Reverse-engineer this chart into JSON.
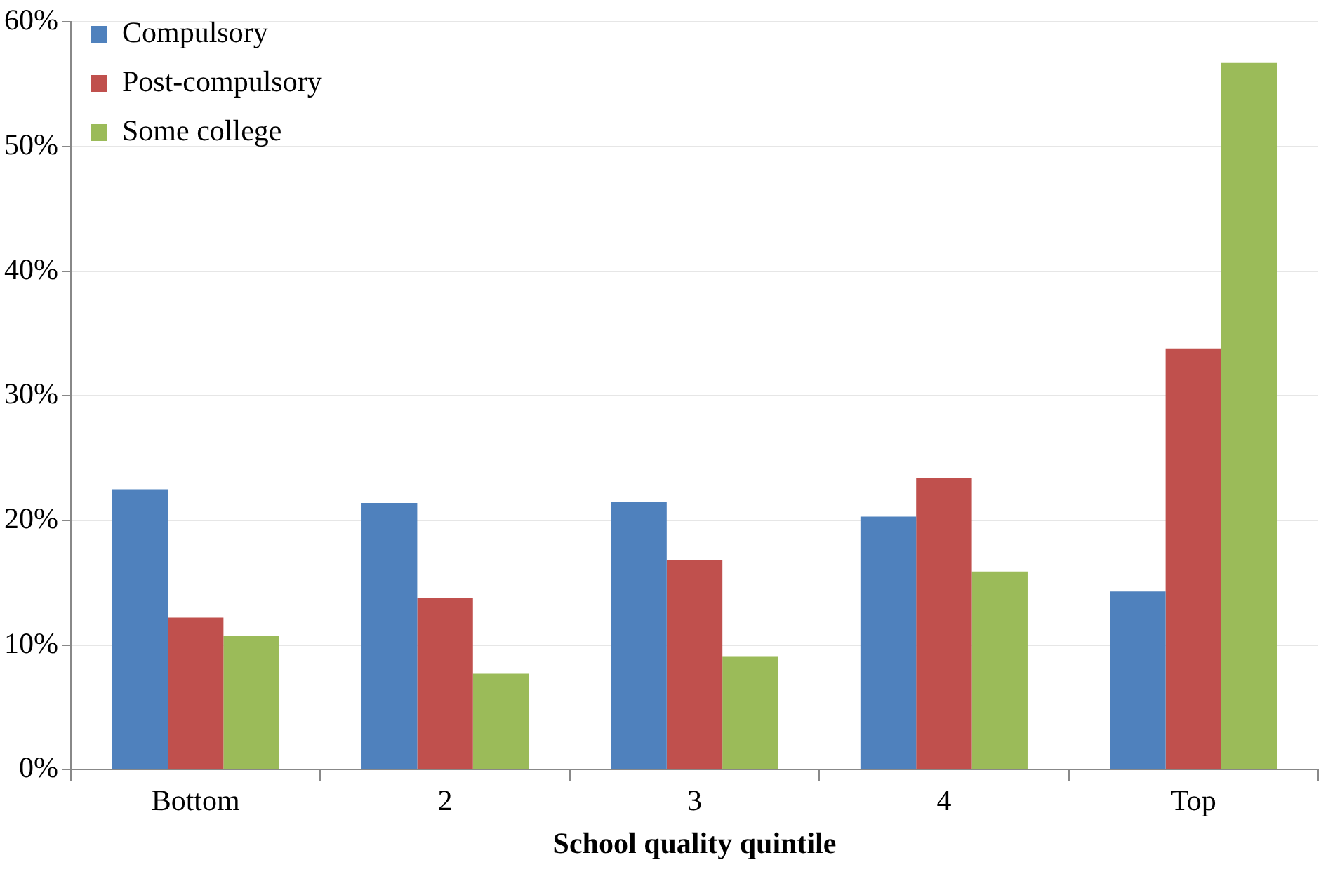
{
  "chart_data": {
    "type": "bar",
    "xlabel": "School quality quintile",
    "categories": [
      "Bottom",
      "2",
      "3",
      "4",
      "Top"
    ],
    "series": [
      {
        "name": "Compulsory",
        "color": "#4f81bd",
        "values": [
          22.5,
          21.4,
          21.5,
          20.3,
          14.3
        ]
      },
      {
        "name": "Post-compulsory",
        "color": "#c0504d",
        "values": [
          12.2,
          13.8,
          16.8,
          23.4,
          33.8
        ]
      },
      {
        "name": "Some college",
        "color": "#9bbb59",
        "values": [
          10.7,
          7.7,
          9.1,
          15.9,
          56.7
        ]
      }
    ],
    "ylim": [
      0,
      60
    ],
    "yticks": [
      {
        "value": 0,
        "label": "0%"
      },
      {
        "value": 10,
        "label": "10%"
      },
      {
        "value": 20,
        "label": "20%"
      },
      {
        "value": 30,
        "label": "30%"
      },
      {
        "value": 40,
        "label": "40%"
      },
      {
        "value": 50,
        "label": "50%"
      },
      {
        "value": 60,
        "label": "60%"
      }
    ],
    "grid": "y",
    "legend": "top left"
  }
}
